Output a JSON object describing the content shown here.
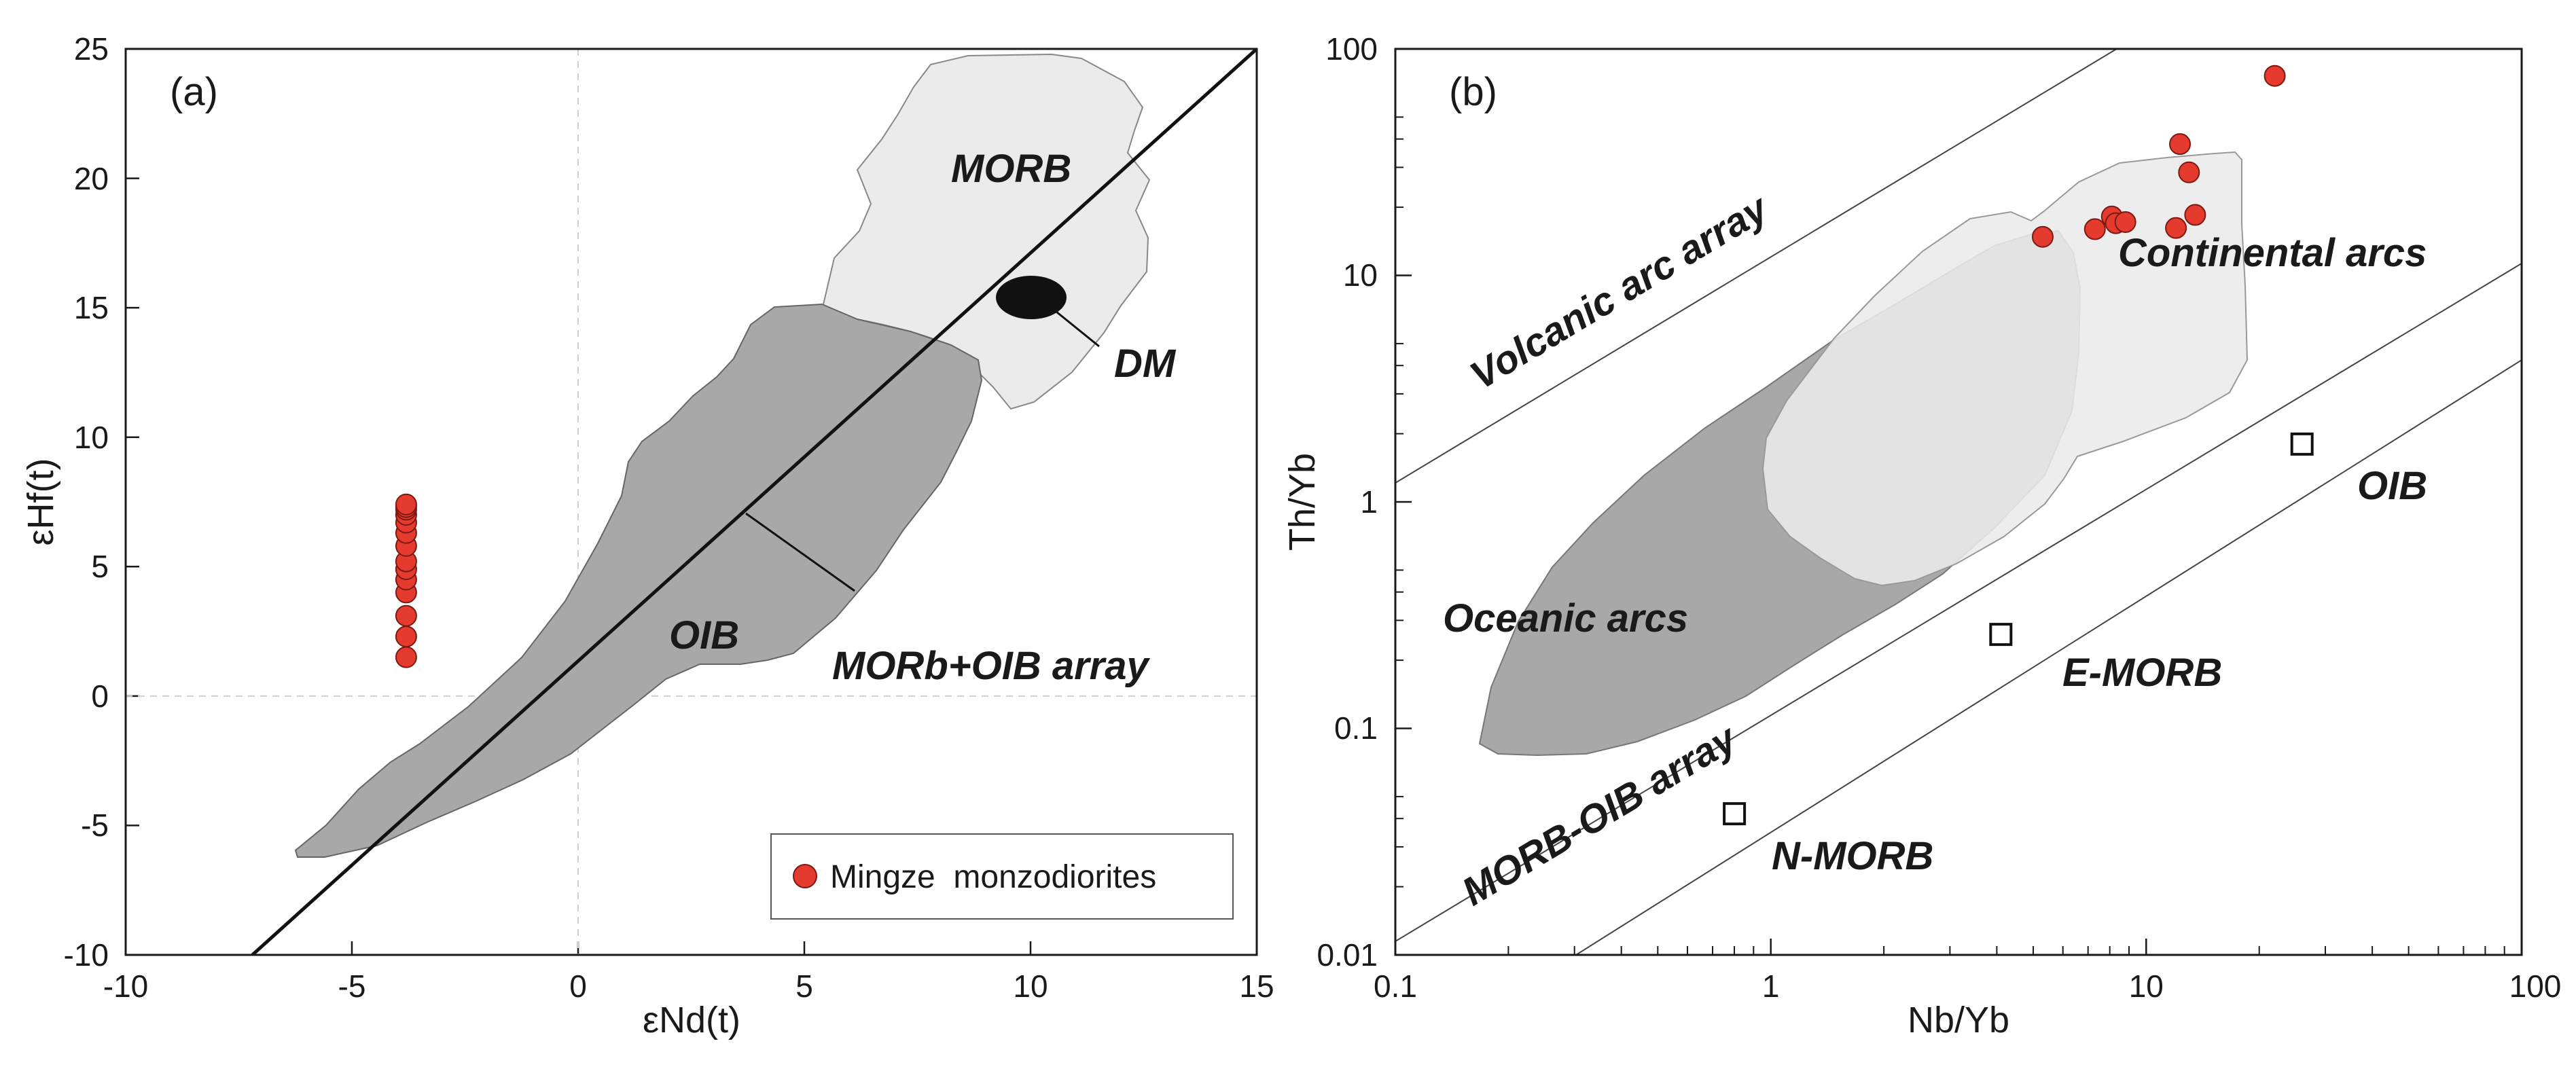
{
  "chart_data": [
    {
      "type": "scatter",
      "panel_label": "(a)",
      "xlabel": "εNd(t)",
      "ylabel": "εHf(t)",
      "xlim": [
        -10,
        15
      ],
      "ylim": [
        -10,
        25
      ],
      "xticks": [
        "-10",
        "-5",
        "0",
        "5",
        "10",
        "15"
      ],
      "yticks": [
        "-10",
        "-5",
        "0",
        "5",
        "10",
        "15",
        "20",
        "25"
      ],
      "fields": [
        {
          "name": "MORB",
          "color": "#ebebeb"
        },
        {
          "name": "OIB",
          "color": "#a8a8a8"
        },
        {
          "name": "DM",
          "color": "#111111"
        }
      ],
      "array_line": {
        "label": "MORb+OIB array",
        "x": [
          -7.2,
          15
        ],
        "y": [
          -10,
          25
        ]
      },
      "series": [
        {
          "name": "Mingze  monzodiorites",
          "color": "#e53a2e",
          "x": [
            -3.8,
            -3.8,
            -3.8,
            -3.8,
            -3.8,
            -3.8,
            -3.8,
            -3.8,
            -3.8,
            -3.8,
            -3.8,
            -3.8,
            -3.8,
            -3.8
          ],
          "y": [
            1.5,
            2.3,
            3.1,
            4.0,
            4.5,
            4.9,
            5.2,
            5.8,
            6.3,
            6.7,
            7.0,
            7.2,
            7.3,
            7.4
          ]
        }
      ],
      "legend": {
        "label": "Mingze  monzodiorites",
        "position": "bottom-right"
      }
    },
    {
      "type": "scatter",
      "panel_label": "(b)",
      "xlabel": "Nb/Yb",
      "ylabel": "Th/Yb",
      "xscale": "log",
      "yscale": "log",
      "xlim": [
        0.1,
        100
      ],
      "ylim": [
        0.01,
        100
      ],
      "xticks": [
        "0.1",
        "1",
        "10",
        "100"
      ],
      "yticks": [
        "0.01",
        "0.1",
        "1",
        "10",
        "100"
      ],
      "fields": [
        {
          "name": "Oceanic arcs",
          "color": "#a8a8a8"
        },
        {
          "name": "Continental arcs",
          "color": "#ebebeb"
        }
      ],
      "labels": {
        "volcanic_arc_array": "Volcanic arc array",
        "morb_oib_array": "MORB-OIB array",
        "oceanic_arcs": "Oceanic arcs",
        "continental_arcs": "Continental arcs",
        "oib": "OIB",
        "e_morb": "E-MORB",
        "n_morb": "N-MORB"
      },
      "reference_points": [
        {
          "name": "N-MORB",
          "x": 0.8,
          "y": 0.042
        },
        {
          "name": "E-MORB",
          "x": 4.1,
          "y": 0.26
        },
        {
          "name": "OIB",
          "x": 26,
          "y": 1.8
        }
      ],
      "series": [
        {
          "name": "Mingze  monzodiorites",
          "color": "#e53a2e",
          "x": [
            5.3,
            7.3,
            8.1,
            8.3,
            8.8,
            12.0,
            12.3,
            13.0,
            13.5,
            22.0
          ],
          "y": [
            14.8,
            16.0,
            18.2,
            17.0,
            17.2,
            16.2,
            38.0,
            28.5,
            18.5,
            76.0
          ]
        }
      ]
    }
  ]
}
